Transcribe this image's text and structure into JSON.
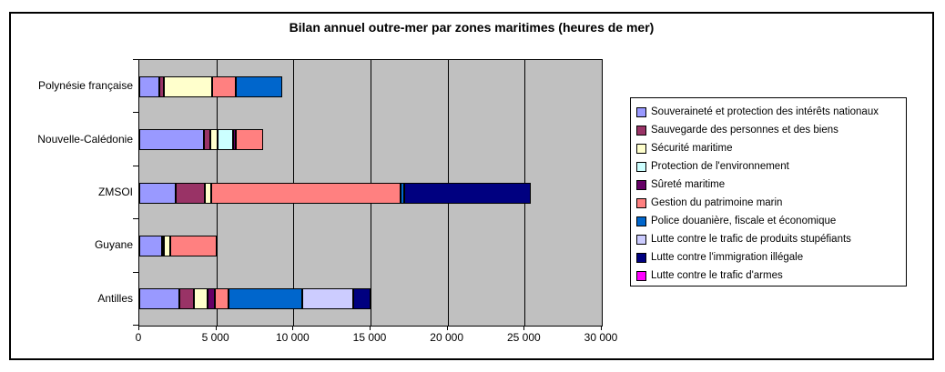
{
  "chart_data": {
    "type": "bar",
    "orientation": "horizontal",
    "stacked": true,
    "title": "Bilan annuel outre-mer par zones maritimes (heures de mer)",
    "categories": [
      "Polynésie française",
      "Nouvelle-Calédonie",
      "ZMSOI",
      "Guyane",
      "Antilles"
    ],
    "x_ticks": [
      "0",
      "5 000",
      "10 000",
      "15 000",
      "20 000",
      "25 000",
      "30 000"
    ],
    "xlim": [
      0,
      30000
    ],
    "x_tick_step": 5000,
    "grid": "vertical-on",
    "legend_position": "right",
    "plot_background_color": "#C0C0C0",
    "series": [
      {
        "name": "Souveraineté et protection des intérêts nationaux",
        "color": "#9999FF",
        "values": [
          1300,
          4200,
          2350,
          1500,
          2600
        ]
      },
      {
        "name": "Sauvegarde des personnes et des biens",
        "color": "#993366",
        "values": [
          300,
          400,
          1900,
          100,
          950
        ]
      },
      {
        "name": "Sécurité maritime",
        "color": "#FFFFCC",
        "values": [
          3100,
          500,
          400,
          400,
          900
        ]
      },
      {
        "name": "Protection de l'environnement",
        "color": "#CCFFFF",
        "values": [
          0,
          1000,
          0,
          0,
          0
        ]
      },
      {
        "name": "Sûreté maritime",
        "color": "#660066",
        "values": [
          0,
          150,
          0,
          0,
          480
        ]
      },
      {
        "name": "Gestion du patrimoine marin",
        "color": "#FF8080",
        "values": [
          1550,
          1800,
          12300,
          3000,
          870
        ]
      },
      {
        "name": "Police douanière, fiscale et économique",
        "color": "#0066CC",
        "values": [
          3050,
          0,
          250,
          0,
          4750
        ]
      },
      {
        "name": "Lutte contre le trafic de produits stupéfiants",
        "color": "#CCCCFF",
        "values": [
          0,
          0,
          0,
          0,
          3350
        ]
      },
      {
        "name": "Lutte contre l'immigration illégale",
        "color": "#000080",
        "values": [
          0,
          0,
          8200,
          0,
          1100
        ]
      },
      {
        "name": "Lutte contre le trafic d'armes",
        "color": "#FF00FF",
        "values": [
          0,
          0,
          0,
          0,
          0
        ]
      }
    ],
    "totals_by_category": [
      9300,
      8050,
      25400,
      5000,
      15000
    ]
  }
}
